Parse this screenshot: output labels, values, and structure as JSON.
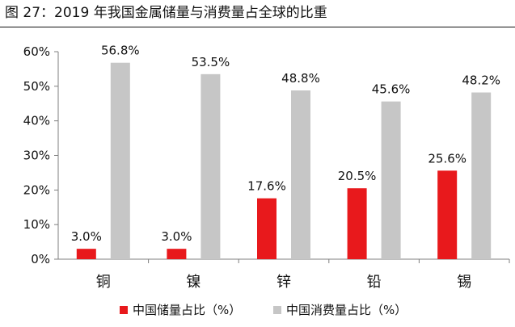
{
  "title": "图 27：2019 年我国金属储量与消费量占全球的比重",
  "chart_data": {
    "type": "bar",
    "categories": [
      "铜",
      "镍",
      "锌",
      "铅",
      "锡"
    ],
    "series": [
      {
        "name": "中国储量占比（%）",
        "color": "#e8191c",
        "values": [
          3.0,
          3.0,
          17.6,
          20.5,
          25.6
        ]
      },
      {
        "name": "中国消费量占比（%）",
        "color": "#c6c6c6",
        "values": [
          56.8,
          53.5,
          48.8,
          45.6,
          48.2
        ]
      }
    ],
    "data_labels": [
      [
        "3.0%",
        "3.0%",
        "17.6%",
        "20.5%",
        "25.6%"
      ],
      [
        "56.8%",
        "53.5%",
        "48.8%",
        "45.6%",
        "48.2%"
      ]
    ],
    "ylim": [
      0,
      60
    ],
    "ytick_labels": [
      "0%",
      "10%",
      "20%",
      "30%",
      "40%",
      "50%",
      "60%"
    ],
    "grid": false,
    "legend_position": "bottom"
  }
}
